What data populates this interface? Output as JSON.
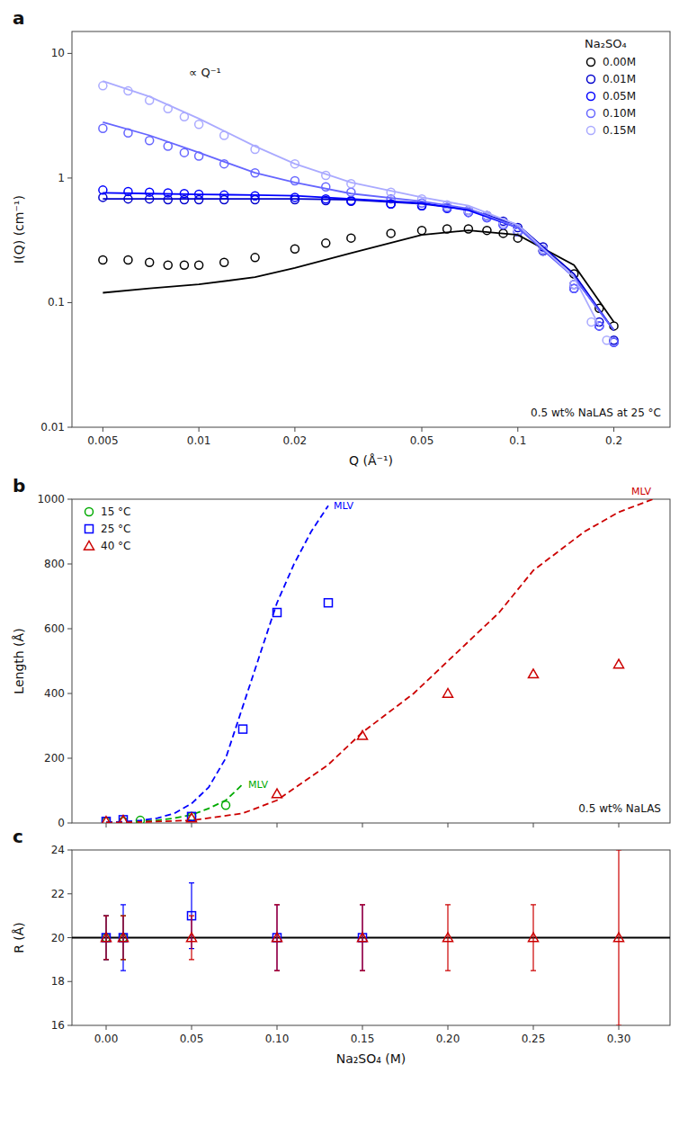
{
  "chart_data": [
    {
      "type": "scatter",
      "title": "a",
      "xlabel": "Q (Å⁻¹)",
      "ylabel": "I(Q) (cm⁻¹)",
      "log": true,
      "xlim": [
        0.004,
        0.3
      ],
      "ylim": [
        0.01,
        15
      ],
      "xticks": [
        0.005,
        0.01,
        0.02,
        0.05,
        0.1,
        0.2
      ],
      "yticks": [
        0.01,
        0.1,
        1,
        10
      ],
      "grid": false,
      "legend": "upper right",
      "legend_title": "Na₂SO₄",
      "annotations": [
        {
          "text": "∝ Q⁻¹"
        },
        {
          "text": "0.5 wt% NaLAS at 25 °C"
        }
      ],
      "series": [
        {
          "name": "0.00M",
          "color": "#000000",
          "type": "scatter",
          "marker": "circle",
          "x": [
            0.005,
            0.006,
            0.007,
            0.008,
            0.009,
            0.01,
            0.012,
            0.015,
            0.02,
            0.025,
            0.03,
            0.04,
            0.05,
            0.06,
            0.07,
            0.08,
            0.09,
            0.1,
            0.12,
            0.15,
            0.18,
            0.2
          ],
          "values": [
            0.22,
            0.22,
            0.21,
            0.2,
            0.2,
            0.2,
            0.21,
            0.23,
            0.27,
            0.3,
            0.33,
            0.36,
            0.38,
            0.39,
            0.39,
            0.38,
            0.36,
            0.33,
            0.26,
            0.17,
            0.09,
            0.065
          ]
        },
        {
          "name": "0.01M",
          "color": "#0000cc",
          "type": "scatter",
          "marker": "circle",
          "x": [
            0.005,
            0.006,
            0.007,
            0.008,
            0.009,
            0.01,
            0.012,
            0.015,
            0.02,
            0.025,
            0.03,
            0.04,
            0.05,
            0.06,
            0.07,
            0.08,
            0.09,
            0.1,
            0.12,
            0.15,
            0.18,
            0.2
          ],
          "values": [
            0.7,
            0.68,
            0.68,
            0.67,
            0.67,
            0.67,
            0.67,
            0.67,
            0.67,
            0.66,
            0.65,
            0.62,
            0.6,
            0.58,
            0.55,
            0.5,
            0.45,
            0.4,
            0.28,
            0.14,
            0.07,
            0.05
          ]
        },
        {
          "name": "0.05M",
          "color": "#0000ff",
          "type": "scatter",
          "marker": "circle",
          "x": [
            0.005,
            0.006,
            0.007,
            0.008,
            0.009,
            0.01,
            0.012,
            0.015,
            0.02,
            0.025,
            0.03,
            0.04,
            0.05,
            0.06,
            0.07,
            0.08,
            0.09,
            0.1,
            0.12,
            0.15,
            0.18,
            0.2
          ],
          "values": [
            0.8,
            0.78,
            0.77,
            0.76,
            0.75,
            0.74,
            0.73,
            0.72,
            0.7,
            0.68,
            0.66,
            0.62,
            0.6,
            0.57,
            0.53,
            0.48,
            0.42,
            0.37,
            0.26,
            0.13,
            0.065,
            0.048
          ]
        },
        {
          "name": "0.10M",
          "color": "#6666ff",
          "type": "scatter",
          "marker": "circle",
          "x": [
            0.005,
            0.006,
            0.007,
            0.008,
            0.009,
            0.01,
            0.012,
            0.015,
            0.02,
            0.025,
            0.03,
            0.04,
            0.05,
            0.06,
            0.07,
            0.08,
            0.09,
            0.1,
            0.12,
            0.15,
            0.18,
            0.2
          ],
          "values": [
            2.5,
            2.3,
            2.0,
            1.8,
            1.6,
            1.5,
            1.3,
            1.1,
            0.95,
            0.85,
            0.77,
            0.68,
            0.63,
            0.58,
            0.53,
            0.48,
            0.42,
            0.37,
            0.26,
            0.13,
            0.065,
            0.048
          ]
        },
        {
          "name": "0.15M",
          "color": "#aaaaff",
          "type": "scatter",
          "marker": "circle",
          "x": [
            0.005,
            0.006,
            0.007,
            0.008,
            0.009,
            0.01,
            0.012,
            0.015,
            0.02,
            0.025,
            0.03,
            0.04,
            0.05,
            0.06,
            0.07,
            0.08,
            0.09,
            0.1,
            0.12,
            0.15,
            0.17,
            0.19
          ],
          "values": [
            5.5,
            5.0,
            4.2,
            3.6,
            3.1,
            2.7,
            2.2,
            1.7,
            1.3,
            1.05,
            0.9,
            0.77,
            0.68,
            0.61,
            0.55,
            0.5,
            0.44,
            0.38,
            0.27,
            0.14,
            0.07,
            0.05
          ]
        },
        {
          "color": "#000000",
          "type": "line",
          "line_style": "solid",
          "x": [
            0.005,
            0.007,
            0.01,
            0.015,
            0.02,
            0.03,
            0.05,
            0.07,
            0.1,
            0.15,
            0.2
          ],
          "values": [
            0.12,
            0.13,
            0.14,
            0.16,
            0.19,
            0.25,
            0.35,
            0.38,
            0.35,
            0.2,
            0.07
          ]
        },
        {
          "color": "#0000cc",
          "type": "line",
          "line_style": "solid",
          "x": [
            0.005,
            0.007,
            0.01,
            0.015,
            0.02,
            0.03,
            0.05,
            0.07,
            0.1,
            0.15,
            0.2
          ],
          "values": [
            0.68,
            0.68,
            0.68,
            0.68,
            0.68,
            0.67,
            0.62,
            0.56,
            0.42,
            0.17,
            0.06
          ]
        },
        {
          "color": "#0000ff",
          "type": "line",
          "line_style": "solid",
          "x": [
            0.005,
            0.007,
            0.01,
            0.015,
            0.02,
            0.03,
            0.05,
            0.07,
            0.1,
            0.15,
            0.2
          ],
          "values": [
            0.76,
            0.75,
            0.74,
            0.73,
            0.72,
            0.68,
            0.63,
            0.55,
            0.4,
            0.16,
            0.06
          ]
        },
        {
          "color": "#6666ff",
          "type": "line",
          "line_style": "solid",
          "x": [
            0.005,
            0.007,
            0.01,
            0.015,
            0.02,
            0.03,
            0.05,
            0.07,
            0.1,
            0.15,
            0.2
          ],
          "values": [
            2.8,
            2.2,
            1.6,
            1.1,
            0.92,
            0.75,
            0.65,
            0.57,
            0.4,
            0.16,
            0.06
          ]
        },
        {
          "color": "#aaaaff",
          "type": "line",
          "line_style": "solid",
          "x": [
            0.005,
            0.007,
            0.01,
            0.015,
            0.02,
            0.03,
            0.05,
            0.07,
            0.1,
            0.15,
            0.18
          ],
          "values": [
            6.0,
            4.5,
            3.0,
            1.8,
            1.3,
            0.92,
            0.7,
            0.6,
            0.42,
            0.16,
            0.065
          ]
        }
      ]
    },
    {
      "type": "scatter",
      "title": "b",
      "ylabel": "Length (Å)",
      "xlim": [
        -0.02,
        0.33
      ],
      "ylim": [
        0,
        1000
      ],
      "xticks": [
        0,
        0.05,
        0.1,
        0.15,
        0.2,
        0.25,
        0.3
      ],
      "yticks": [
        0,
        200,
        400,
        600,
        800,
        1000
      ],
      "tick_labels": "y",
      "grid": false,
      "legend": "upper left",
      "annotations": [
        {
          "text": "0.5 wt% NaLAS"
        },
        {
          "text": "MLV",
          "color": "#0000ff"
        },
        {
          "text": "MLV",
          "color": "#00aa00"
        },
        {
          "text": "MLV",
          "color": "#cc0000"
        }
      ],
      "series": [
        {
          "color": "#00aa00",
          "type": "line",
          "line_style": "dashed",
          "x": [
            0.0,
            0.01,
            0.02,
            0.03,
            0.04,
            0.05,
            0.06,
            0.07,
            0.08
          ],
          "values": [
            2,
            3,
            5,
            8,
            15,
            25,
            45,
            70,
            120
          ]
        },
        {
          "color": "#0000ff",
          "type": "line",
          "line_style": "dashed",
          "x": [
            0.0,
            0.01,
            0.02,
            0.03,
            0.04,
            0.05,
            0.06,
            0.07,
            0.08,
            0.09,
            0.1,
            0.11,
            0.12,
            0.13
          ],
          "values": [
            2,
            4,
            8,
            15,
            30,
            60,
            110,
            200,
            360,
            520,
            680,
            800,
            900,
            980
          ]
        },
        {
          "color": "#cc0000",
          "type": "line",
          "line_style": "dashed",
          "x": [
            0.0,
            0.02,
            0.05,
            0.08,
            0.1,
            0.13,
            0.15,
            0.18,
            0.2,
            0.23,
            0.25,
            0.28,
            0.3,
            0.32
          ],
          "values": [
            1,
            3,
            8,
            30,
            70,
            180,
            280,
            400,
            500,
            650,
            780,
            900,
            960,
            1000
          ]
        },
        {
          "name": "15 °C",
          "color": "#00aa00",
          "type": "scatter",
          "marker": "circle",
          "x": [
            0.0,
            0.01,
            0.02,
            0.05,
            0.07
          ],
          "values": [
            5,
            5,
            8,
            20,
            55
          ]
        },
        {
          "name": "25 °C",
          "color": "#0000ff",
          "type": "scatter",
          "marker": "square",
          "x": [
            0.0,
            0.01,
            0.05,
            0.08,
            0.1,
            0.13
          ],
          "values": [
            5,
            10,
            20,
            290,
            650,
            680
          ]
        },
        {
          "name": "40 °C",
          "color": "#cc0000",
          "type": "scatter",
          "marker": "triangle",
          "x": [
            0.0,
            0.01,
            0.05,
            0.1,
            0.15,
            0.2,
            0.25,
            0.3
          ],
          "values": [
            5,
            8,
            15,
            90,
            270,
            400,
            460,
            490
          ]
        }
      ]
    },
    {
      "type": "scatter",
      "title": "c",
      "xlabel": "Na₂SO₄ (M)",
      "ylabel": "R (Å)",
      "xlim": [
        -0.02,
        0.33
      ],
      "ylim": [
        16,
        24
      ],
      "xticks": [
        {
          "value": 0,
          "label": "0.00"
        },
        0.05,
        {
          "value": 0.1,
          "label": "0.10"
        },
        0.15,
        {
          "value": 0.2,
          "label": "0.20"
        },
        0.25,
        {
          "value": 0.3,
          "label": "0.30"
        }
      ],
      "yticks": [
        16,
        18,
        20,
        22,
        24
      ],
      "grid": false,
      "series": [
        {
          "color": "#000000",
          "type": "line",
          "line_style": "solid",
          "x": [
            -0.02,
            0.33
          ],
          "values": [
            20.0,
            20.0
          ]
        },
        {
          "color": "#00aa00",
          "type": "scatter",
          "marker": "circle",
          "x": [
            0.0,
            0.01
          ],
          "values": [
            20.0,
            20.0
          ],
          "errors": [
            1.0,
            1.0
          ]
        },
        {
          "color": "#0000ff",
          "type": "scatter",
          "marker": "square",
          "x": [
            0.0,
            0.01,
            0.05,
            0.1,
            0.15
          ],
          "values": [
            20.0,
            20.0,
            21.0,
            20.0,
            20.0
          ],
          "errors": [
            1.0,
            1.5,
            1.5,
            1.5,
            1.5
          ]
        },
        {
          "color": "#cc0000",
          "type": "scatter",
          "marker": "triangle",
          "x": [
            0.0,
            0.01,
            0.05,
            0.1,
            0.15,
            0.2,
            0.25,
            0.3
          ],
          "values": [
            20.0,
            20.0,
            20.0,
            20.0,
            20.0,
            20.0,
            20.0,
            20.0
          ],
          "errors": [
            1.0,
            1.0,
            1.0,
            1.5,
            1.5,
            1.5,
            1.5,
            4.0
          ]
        }
      ]
    }
  ]
}
